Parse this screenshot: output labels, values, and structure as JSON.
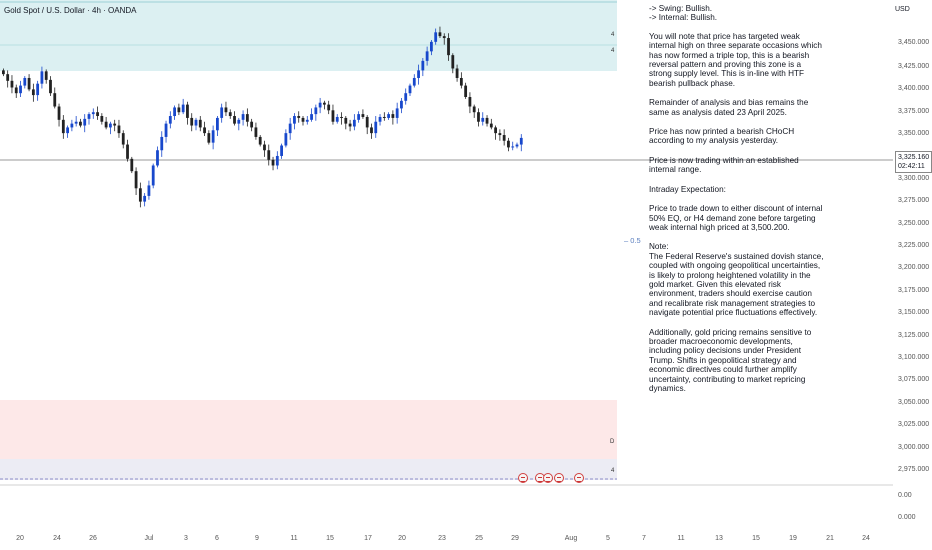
{
  "header": {
    "symbol_title": "Gold Spot / U.S. Dollar · 4h · OANDA"
  },
  "price_axis": {
    "currency": "USD",
    "ticks": [
      "3,450.000",
      "3,425.000",
      "3,400.000",
      "3,375.000",
      "3,350.000",
      "3,300.000",
      "3,275.000",
      "3,250.000",
      "3,225.000",
      "3,200.000",
      "3,175.000",
      "3,150.000",
      "3,125.000",
      "3,100.000",
      "3,075.000",
      "3,050.000",
      "3,025.000",
      "3,000.000",
      "2,975.000",
      "0.00",
      "0.000"
    ],
    "current_price": "3,325.160",
    "countdown": "02:42:11"
  },
  "time_axis": {
    "labels": [
      "20",
      "24",
      "26",
      "Jul",
      "3",
      "6",
      "9",
      "11",
      "15",
      "17",
      "20",
      "23",
      "25",
      "29",
      "Aug",
      "5",
      "7",
      "11",
      "13",
      "15",
      "19",
      "21",
      "24"
    ]
  },
  "annotations": {
    "fib_level": "– 0.5",
    "marker_top_1": "4",
    "marker_top_2": "4",
    "marker_demand": "D",
    "marker_bottom": "4"
  },
  "analysis": {
    "trend_lines": "-> Swing:  Bullish.\n-> Internal:  Bullish.",
    "p1": "You will note that price has targeted weak internal high on three separate occasions which has now formed a triple top, this is a bearish reversal pattern and proving this zone is a strong supply level.  This is in-line with HTF bearish pullback phase.",
    "p2": "Remainder of analysis and bias remains the same as analysis dated 23 April 2025.",
    "p3": "Price has now printed a bearish CHoCH according to my analysis yesterday.",
    "p4": "Price is now trading within an established internal range.",
    "p5": "Intraday Expectation:",
    "p6": "Price to trade down to either discount of internal 50% EQ, or H4 demand zone before targeting weak internal high priced at 3,500.200.",
    "p7": "Note:\nThe Federal Reserve's sustained dovish stance, coupled with ongoing geopolitical uncertainties, is likely to prolong heightened volatility in the gold market. Given this elevated risk environment, traders should exercise caution and recalibrate risk management strategies to navigate potential price fluctuations effectively.",
    "p8": "Additionally, gold pricing remains sensitive to broader macroeconomic developments, including policy decisions under President Trump. Shifts in geopolitical strategy and economic directives could further amplify uncertainty, contributing to market repricing dynamics."
  },
  "colors": {
    "bull": "#1848cc",
    "bear": "#222222",
    "supply_zone": "#dcf0f2",
    "demand_zone": "#fde8e8",
    "lower_zone": "#ececf4"
  },
  "chart_data": {
    "type": "candlestick",
    "symbol": "Gold Spot / U.S. Dollar",
    "interval": "4h",
    "ylim": [
      2960,
      3470
    ],
    "close_series": [
      3392,
      3385,
      3378,
      3372,
      3380,
      3388,
      3376,
      3370,
      3382,
      3395,
      3386,
      3372,
      3358,
      3344,
      3330,
      3336,
      3340,
      3342,
      3338,
      3345,
      3350,
      3352,
      3348,
      3342,
      3336,
      3340,
      3338,
      3330,
      3318,
      3303,
      3290,
      3272,
      3258,
      3264,
      3275,
      3296,
      3312,
      3326,
      3340,
      3348,
      3357,
      3352,
      3360,
      3346,
      3338,
      3344,
      3336,
      3330,
      3320,
      3333,
      3346,
      3357,
      3352,
      3348,
      3340,
      3344,
      3350,
      3342,
      3336,
      3326,
      3318,
      3312,
      3302,
      3296,
      3306,
      3317,
      3330,
      3340,
      3348,
      3346,
      3342,
      3344,
      3350,
      3357,
      3362,
      3360,
      3354,
      3342,
      3347,
      3346,
      3340,
      3337,
      3344,
      3350,
      3347,
      3336,
      3330,
      3342,
      3347,
      3346,
      3350,
      3346,
      3356,
      3364,
      3372,
      3380,
      3388,
      3396,
      3406,
      3416,
      3426,
      3436,
      3432,
      3430,
      3412,
      3398,
      3388,
      3380,
      3368,
      3358,
      3352,
      3342,
      3346,
      3340,
      3336,
      3330,
      3328,
      3322,
      3315,
      3316,
      3318,
      3325
    ]
  }
}
